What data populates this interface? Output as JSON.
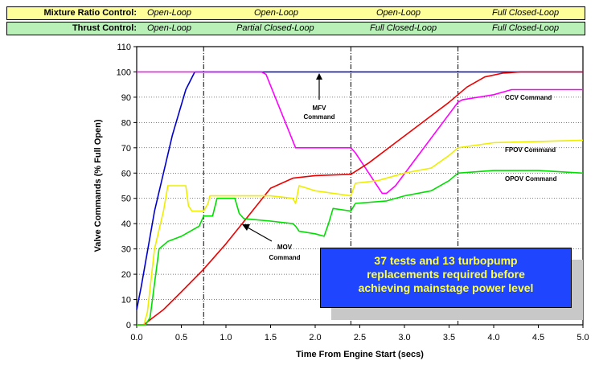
{
  "phase_bands": {
    "mixture_ratio": {
      "label": "Mixture Ratio Control:",
      "cells": [
        "Open-Loop",
        "Open-Loop",
        "Open-Loop",
        "Full Closed-Loop"
      ],
      "color": "#ffff99"
    },
    "thrust": {
      "label": "Thrust Control:",
      "cells": [
        "Open-Loop",
        "Partial Closed-Loop",
        "Full Closed-Loop",
        "Full Closed-Loop"
      ],
      "color": "#b8f0b8"
    }
  },
  "callout": {
    "lines": [
      "37 tests and 13 turbopump",
      "replacements required before",
      "achieving mainstage power level"
    ],
    "background": "#1f45ff",
    "text_color": "#ffff44"
  },
  "annotations": {
    "mfv": [
      "MFV",
      "Command"
    ],
    "mov": [
      "MOV",
      "Command"
    ],
    "ccv": "CCV Command",
    "fpov": "FPOV Command",
    "opov": "OPOV Command"
  },
  "chart_data": {
    "type": "line",
    "xlabel": "Time From Engine Start (secs)",
    "ylabel": "Valve Commands (% Full Open)",
    "xlim": [
      0,
      5
    ],
    "ylim": [
      0,
      110
    ],
    "xticks": [
      "0.0",
      "0.5",
      "1.0",
      "1.5",
      "2.0",
      "2.5",
      "3.0",
      "3.5",
      "4.0",
      "4.5",
      "5.0"
    ],
    "yticks": [
      "0",
      "10",
      "20",
      "30",
      "40",
      "50",
      "60",
      "70",
      "80",
      "90",
      "100",
      "110"
    ],
    "grid": "horizontal",
    "phase_boundaries": [
      0.75,
      2.4,
      3.6
    ],
    "series": [
      {
        "name": "MFV Command",
        "color": "#0000cc",
        "x": [
          0.0,
          0.05,
          0.2,
          0.4,
          0.55,
          0.65,
          0.7,
          1.0,
          5.0
        ],
        "y": [
          6,
          15,
          45,
          75,
          93,
          100,
          100,
          100,
          100
        ]
      },
      {
        "name": "CCV Command",
        "color": "#ff00ff",
        "x": [
          0.0,
          1.4,
          1.45,
          1.78,
          1.8,
          2.4,
          2.45,
          2.75,
          2.8,
          2.9,
          3.6,
          3.65,
          4.0,
          4.2,
          5.0
        ],
        "y": [
          100,
          100,
          99,
          70,
          70,
          70,
          68,
          52,
          52,
          55,
          88,
          89,
          91,
          93,
          93
        ]
      },
      {
        "name": "MOV Command",
        "color": "#ee0000",
        "x": [
          0.0,
          0.08,
          0.15,
          0.3,
          0.5,
          0.75,
          1.0,
          1.25,
          1.5,
          1.75,
          2.0,
          2.4,
          2.6,
          2.9,
          3.2,
          3.5,
          3.7,
          3.9,
          4.1,
          4.3,
          5.0
        ],
        "y": [
          0,
          0,
          2,
          6,
          13,
          22,
          32,
          43,
          54,
          58,
          59,
          59.5,
          64,
          72,
          80,
          88,
          94,
          98,
          99.5,
          100,
          100
        ]
      },
      {
        "name": "FPOV Command",
        "color": "#eeee00",
        "x": [
          0.0,
          0.08,
          0.12,
          0.2,
          0.3,
          0.35,
          0.5,
          0.55,
          0.58,
          0.62,
          0.75,
          0.8,
          0.82,
          0.9,
          1.0,
          1.5,
          1.75,
          1.78,
          1.82,
          2.0,
          2.4,
          2.45,
          2.7,
          3.0,
          3.3,
          3.5,
          3.6,
          4.0,
          5.0
        ],
        "y": [
          0,
          0,
          5,
          30,
          45,
          55,
          55,
          55,
          47,
          45,
          45,
          48,
          51,
          51,
          51,
          51,
          50,
          48,
          55,
          53,
          51,
          56,
          57,
          60,
          62,
          67,
          70,
          72,
          73
        ]
      },
      {
        "name": "OPOV Command",
        "color": "#00dd00",
        "x": [
          0.0,
          0.1,
          0.15,
          0.25,
          0.35,
          0.5,
          0.7,
          0.75,
          0.85,
          0.9,
          1.0,
          1.1,
          1.15,
          1.2,
          1.5,
          1.75,
          1.78,
          1.82,
          2.0,
          2.1,
          2.15,
          2.2,
          2.4,
          2.45,
          2.8,
          3.0,
          3.3,
          3.5,
          3.6,
          4.0,
          4.5,
          5.0
        ],
        "y": [
          0,
          0,
          3,
          30,
          33,
          35,
          39,
          43,
          43,
          50,
          50,
          50,
          44,
          42,
          41,
          40,
          39,
          37,
          36,
          35,
          40,
          46,
          45,
          48,
          49,
          51,
          53,
          57,
          60,
          61,
          61,
          60
        ]
      }
    ]
  }
}
